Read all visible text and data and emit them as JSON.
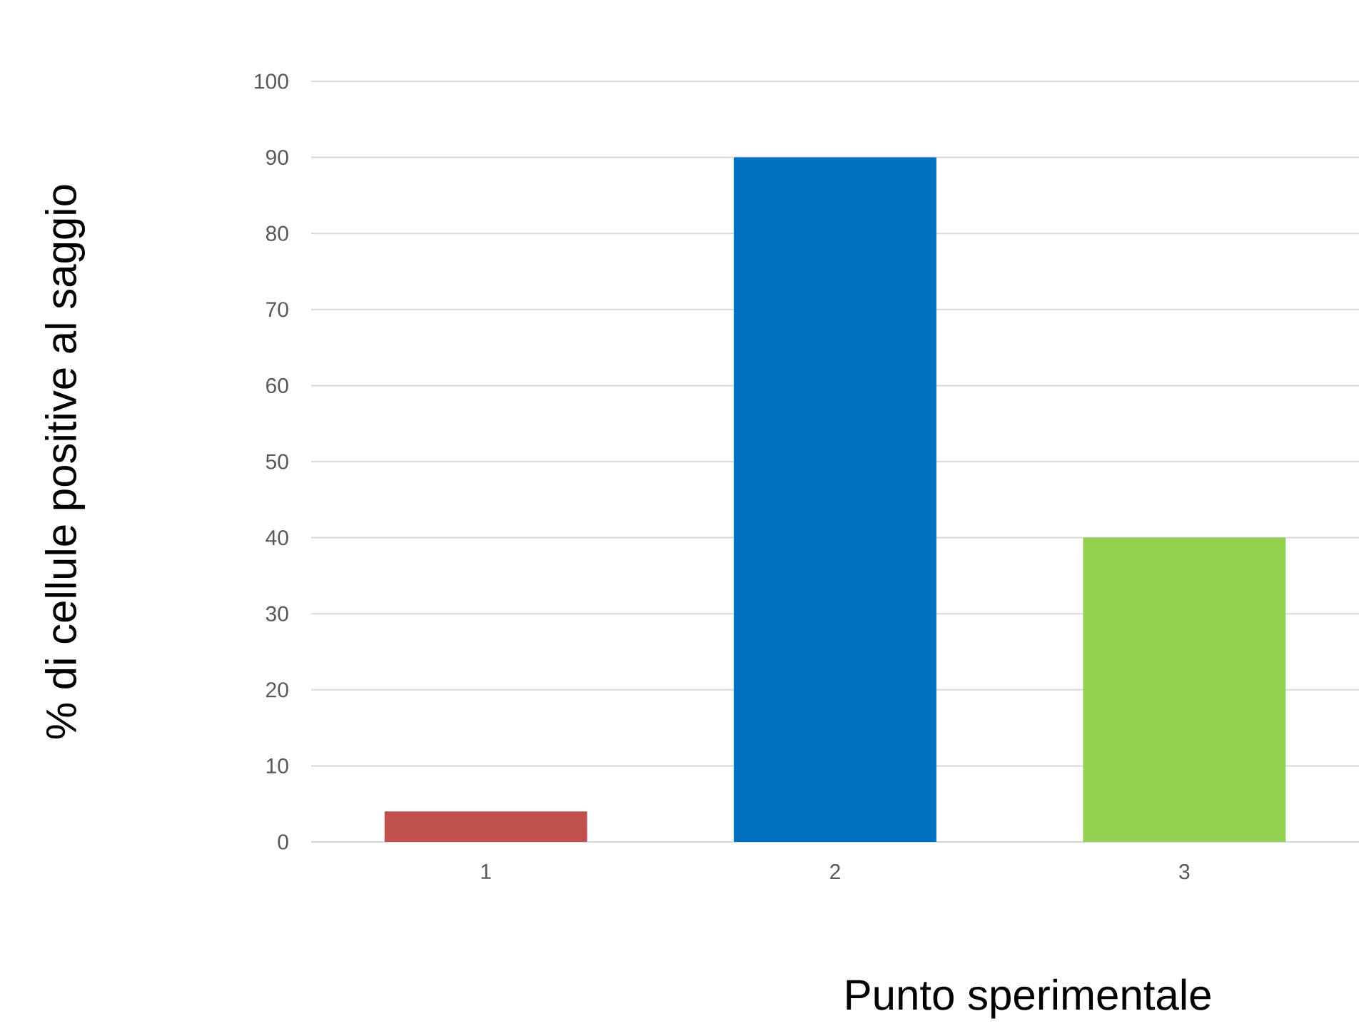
{
  "chart_data": {
    "type": "bar",
    "xlabel": "Punto sperimentale",
    "ylabel": "% di cellule positive al saggio",
    "categories": [
      "1",
      "2",
      "3"
    ],
    "values": [
      4,
      90,
      40
    ],
    "colors": [
      "#c0504d",
      "#0070c0",
      "#92d050"
    ],
    "ylim": [
      0,
      100
    ],
    "yticks": [
      0,
      10,
      20,
      30,
      40,
      50,
      60,
      70,
      80,
      90,
      100
    ],
    "grid": "y"
  }
}
